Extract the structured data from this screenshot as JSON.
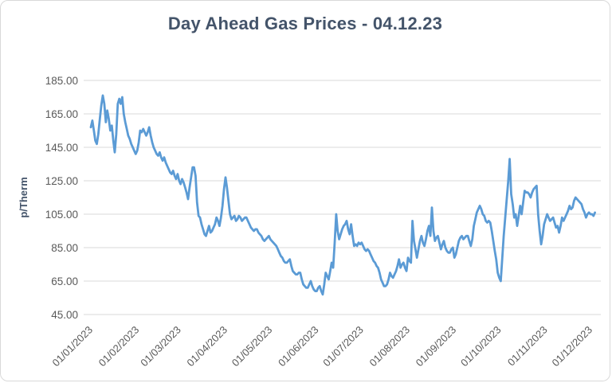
{
  "card": {
    "title": "Day Ahead Gas Prices - 04.12.23"
  },
  "style": {
    "title_color": "#44546A",
    "axis_text_color": "#595959",
    "gridline_color": "#D9D9D9",
    "line_color": "#5B9BD5",
    "background": "#FFFFFF"
  },
  "chart_data": {
    "type": "line",
    "title": "Day Ahead Gas Prices - 04.12.23",
    "xlabel": "",
    "ylabel": "p/Therm",
    "ylim": [
      45,
      185
    ],
    "y_ticks": [
      45,
      65,
      85,
      105,
      125,
      145,
      165,
      185
    ],
    "y_tick_format": "two-decimal",
    "x_tick_labels": [
      "01/01/2023",
      "01/02/2023",
      "01/03/2023",
      "01/04/2023",
      "01/05/2023",
      "01/06/2023",
      "01/07/2023",
      "01/08/2023",
      "01/09/2023",
      "01/10/2023",
      "01/11/2023",
      "01/12/2023"
    ],
    "grid": "horizontal-only",
    "legend": "none",
    "points_format": [
      "date MM/DD in 2023",
      "price p/Therm"
    ],
    "points": [
      [
        "01/01",
        157
      ],
      [
        "01/02",
        161
      ],
      [
        "01/03",
        155
      ],
      [
        "01/04",
        149
      ],
      [
        "01/05",
        147
      ],
      [
        "01/06",
        153
      ],
      [
        "01/07",
        162
      ],
      [
        "01/08",
        170
      ],
      [
        "01/09",
        176
      ],
      [
        "01/10",
        171
      ],
      [
        "01/11",
        160
      ],
      [
        "01/12",
        167
      ],
      [
        "01/13",
        162
      ],
      [
        "01/14",
        155
      ],
      [
        "01/15",
        158
      ],
      [
        "01/16",
        149
      ],
      [
        "01/17",
        142
      ],
      [
        "01/18",
        153
      ],
      [
        "01/19",
        171
      ],
      [
        "01/20",
        174
      ],
      [
        "01/21",
        171
      ],
      [
        "01/22",
        175
      ],
      [
        "01/23",
        165
      ],
      [
        "01/24",
        160
      ],
      [
        "01/25",
        156
      ],
      [
        "01/26",
        152
      ],
      [
        "01/27",
        150
      ],
      [
        "01/28",
        147
      ],
      [
        "01/29",
        145
      ],
      [
        "01/30",
        143
      ],
      [
        "01/31",
        141
      ],
      [
        "02/01",
        143
      ],
      [
        "02/02",
        148
      ],
      [
        "02/03",
        155
      ],
      [
        "02/04",
        154
      ],
      [
        "02/05",
        156
      ],
      [
        "02/06",
        154
      ],
      [
        "02/07",
        152
      ],
      [
        "02/08",
        154
      ],
      [
        "02/09",
        157
      ],
      [
        "02/10",
        152
      ],
      [
        "02/11",
        148
      ],
      [
        "02/12",
        145
      ],
      [
        "02/13",
        143
      ],
      [
        "02/14",
        141
      ],
      [
        "02/15",
        140
      ],
      [
        "02/16",
        142
      ],
      [
        "02/17",
        139
      ],
      [
        "02/18",
        137
      ],
      [
        "02/19",
        139
      ],
      [
        "02/20",
        136
      ],
      [
        "02/21",
        134
      ],
      [
        "02/22",
        132
      ],
      [
        "02/23",
        130
      ],
      [
        "02/24",
        129
      ],
      [
        "02/25",
        131
      ],
      [
        "02/26",
        128
      ],
      [
        "02/27",
        126
      ],
      [
        "02/28",
        129
      ],
      [
        "03/01",
        125
      ],
      [
        "03/02",
        123
      ],
      [
        "03/03",
        126
      ],
      [
        "03/04",
        124
      ],
      [
        "03/05",
        121
      ],
      [
        "03/06",
        118
      ],
      [
        "03/07",
        114
      ],
      [
        "03/08",
        121
      ],
      [
        "03/09",
        127
      ],
      [
        "03/10",
        133
      ],
      [
        "03/11",
        133
      ],
      [
        "03/12",
        128
      ],
      [
        "03/13",
        112
      ],
      [
        "03/14",
        104
      ],
      [
        "03/15",
        103
      ],
      [
        "03/16",
        99
      ],
      [
        "03/17",
        96
      ],
      [
        "03/18",
        93
      ],
      [
        "03/19",
        92
      ],
      [
        "03/20",
        95
      ],
      [
        "03/21",
        98
      ],
      [
        "03/22",
        94
      ],
      [
        "03/23",
        95
      ],
      [
        "03/24",
        97
      ],
      [
        "03/25",
        99
      ],
      [
        "03/26",
        103
      ],
      [
        "03/27",
        101
      ],
      [
        "03/28",
        98
      ],
      [
        "03/29",
        103
      ],
      [
        "03/30",
        110
      ],
      [
        "03/31",
        120
      ],
      [
        "04/01",
        127
      ],
      [
        "04/02",
        121
      ],
      [
        "04/03",
        113
      ],
      [
        "04/04",
        105
      ],
      [
        "04/05",
        102
      ],
      [
        "04/06",
        103
      ],
      [
        "04/07",
        104
      ],
      [
        "04/08",
        101
      ],
      [
        "04/09",
        102
      ],
      [
        "04/10",
        104
      ],
      [
        "04/11",
        103
      ],
      [
        "04/12",
        101
      ],
      [
        "04/13",
        102
      ],
      [
        "04/14",
        103
      ],
      [
        "04/15",
        103
      ],
      [
        "04/16",
        101
      ],
      [
        "04/17",
        99
      ],
      [
        "04/18",
        97
      ],
      [
        "04/19",
        96
      ],
      [
        "04/20",
        95
      ],
      [
        "04/21",
        96
      ],
      [
        "04/22",
        96
      ],
      [
        "04/23",
        94
      ],
      [
        "04/24",
        93
      ],
      [
        "04/25",
        92
      ],
      [
        "04/26",
        90
      ],
      [
        "04/27",
        89
      ],
      [
        "04/28",
        90
      ],
      [
        "04/29",
        91
      ],
      [
        "04/30",
        92
      ],
      [
        "05/01",
        90
      ],
      [
        "05/02",
        89
      ],
      [
        "05/03",
        88
      ],
      [
        "05/04",
        87
      ],
      [
        "05/05",
        86
      ],
      [
        "05/06",
        84
      ],
      [
        "05/07",
        82
      ],
      [
        "05/08",
        80
      ],
      [
        "05/09",
        79
      ],
      [
        "05/10",
        77
      ],
      [
        "05/11",
        76
      ],
      [
        "05/12",
        76
      ],
      [
        "05/13",
        77
      ],
      [
        "05/14",
        78
      ],
      [
        "05/15",
        74
      ],
      [
        "05/16",
        71
      ],
      [
        "05/17",
        70
      ],
      [
        "05/18",
        69
      ],
      [
        "05/19",
        69
      ],
      [
        "05/20",
        70
      ],
      [
        "05/21",
        70
      ],
      [
        "05/22",
        66
      ],
      [
        "05/23",
        63
      ],
      [
        "05/24",
        62
      ],
      [
        "05/25",
        61
      ],
      [
        "05/26",
        61
      ],
      [
        "05/27",
        63
      ],
      [
        "05/28",
        65
      ],
      [
        "05/29",
        62
      ],
      [
        "05/30",
        60
      ],
      [
        "05/31",
        59
      ],
      [
        "06/01",
        59
      ],
      [
        "06/02",
        61
      ],
      [
        "06/03",
        62
      ],
      [
        "06/04",
        59
      ],
      [
        "06/05",
        57
      ],
      [
        "06/06",
        63
      ],
      [
        "06/07",
        70
      ],
      [
        "06/08",
        68
      ],
      [
        "06/09",
        66
      ],
      [
        "06/10",
        71
      ],
      [
        "06/11",
        76
      ],
      [
        "06/12",
        73
      ],
      [
        "06/13",
        88
      ],
      [
        "06/14",
        105
      ],
      [
        "06/15",
        95
      ],
      [
        "06/16",
        90
      ],
      [
        "06/17",
        93
      ],
      [
        "06/18",
        96
      ],
      [
        "06/19",
        98
      ],
      [
        "06/20",
        99
      ],
      [
        "06/21",
        101
      ],
      [
        "06/22",
        96
      ],
      [
        "06/23",
        93
      ],
      [
        "06/24",
        99
      ],
      [
        "06/25",
        92
      ],
      [
        "06/26",
        86
      ],
      [
        "06/27",
        87
      ],
      [
        "06/28",
        86
      ],
      [
        "06/29",
        88
      ],
      [
        "06/30",
        87
      ],
      [
        "07/01",
        88
      ],
      [
        "07/02",
        86
      ],
      [
        "07/03",
        84
      ],
      [
        "07/04",
        83
      ],
      [
        "07/05",
        84
      ],
      [
        "07/06",
        83
      ],
      [
        "07/07",
        81
      ],
      [
        "07/08",
        79
      ],
      [
        "07/09",
        77
      ],
      [
        "07/10",
        76
      ],
      [
        "07/11",
        74
      ],
      [
        "07/12",
        73
      ],
      [
        "07/13",
        70
      ],
      [
        "07/14",
        66
      ],
      [
        "07/15",
        64
      ],
      [
        "07/16",
        62
      ],
      [
        "07/17",
        62
      ],
      [
        "07/18",
        63
      ],
      [
        "07/19",
        66
      ],
      [
        "07/20",
        70
      ],
      [
        "07/21",
        68
      ],
      [
        "07/22",
        67
      ],
      [
        "07/23",
        69
      ],
      [
        "07/24",
        71
      ],
      [
        "07/25",
        74
      ],
      [
        "07/26",
        78
      ],
      [
        "07/27",
        73
      ],
      [
        "07/28",
        75
      ],
      [
        "07/29",
        76
      ],
      [
        "07/30",
        73
      ],
      [
        "07/31",
        71
      ],
      [
        "08/01",
        79
      ],
      [
        "08/02",
        77
      ],
      [
        "08/03",
        76
      ],
      [
        "08/04",
        101
      ],
      [
        "08/05",
        89
      ],
      [
        "08/06",
        84
      ],
      [
        "08/07",
        79
      ],
      [
        "08/08",
        84
      ],
      [
        "08/09",
        89
      ],
      [
        "08/10",
        92
      ],
      [
        "08/11",
        88
      ],
      [
        "08/12",
        86
      ],
      [
        "08/13",
        90
      ],
      [
        "08/14",
        95
      ],
      [
        "08/15",
        98
      ],
      [
        "08/16",
        92
      ],
      [
        "08/17",
        109
      ],
      [
        "08/18",
        95
      ],
      [
        "08/19",
        89
      ],
      [
        "08/20",
        91
      ],
      [
        "08/21",
        92
      ],
      [
        "08/22",
        88
      ],
      [
        "08/23",
        84
      ],
      [
        "08/24",
        87
      ],
      [
        "08/25",
        89
      ],
      [
        "08/26",
        85
      ],
      [
        "08/27",
        83
      ],
      [
        "08/28",
        82
      ],
      [
        "08/29",
        82
      ],
      [
        "08/30",
        84
      ],
      [
        "08/31",
        85
      ],
      [
        "09/01",
        79
      ],
      [
        "09/02",
        81
      ],
      [
        "09/03",
        85
      ],
      [
        "09/04",
        89
      ],
      [
        "09/05",
        91
      ],
      [
        "09/06",
        92
      ],
      [
        "09/07",
        90
      ],
      [
        "09/08",
        91
      ],
      [
        "09/09",
        92
      ],
      [
        "09/10",
        92
      ],
      [
        "09/11",
        89
      ],
      [
        "09/12",
        86
      ],
      [
        "09/13",
        90
      ],
      [
        "09/14",
        98
      ],
      [
        "09/15",
        102
      ],
      [
        "09/16",
        106
      ],
      [
        "09/17",
        108
      ],
      [
        "09/18",
        110
      ],
      [
        "09/19",
        108
      ],
      [
        "09/20",
        105
      ],
      [
        "09/21",
        104
      ],
      [
        "09/22",
        101
      ],
      [
        "09/23",
        100
      ],
      [
        "09/24",
        101
      ],
      [
        "09/25",
        100
      ],
      [
        "09/26",
        95
      ],
      [
        "09/27",
        89
      ],
      [
        "09/28",
        83
      ],
      [
        "09/29",
        78
      ],
      [
        "09/30",
        70
      ],
      [
        "10/01",
        67
      ],
      [
        "10/02",
        65
      ],
      [
        "10/03",
        78
      ],
      [
        "10/04",
        92
      ],
      [
        "10/05",
        103
      ],
      [
        "10/06",
        114
      ],
      [
        "10/07",
        125
      ],
      [
        "10/08",
        138
      ],
      [
        "10/09",
        117
      ],
      [
        "10/10",
        111
      ],
      [
        "10/11",
        103
      ],
      [
        "10/12",
        105
      ],
      [
        "10/13",
        98
      ],
      [
        "10/14",
        104
      ],
      [
        "10/15",
        110
      ],
      [
        "10/16",
        105
      ],
      [
        "10/17",
        112
      ],
      [
        "10/18",
        119
      ],
      [
        "10/19",
        118
      ],
      [
        "10/20",
        118
      ],
      [
        "10/21",
        117
      ],
      [
        "10/22",
        115
      ],
      [
        "10/23",
        118
      ],
      [
        "10/24",
        120
      ],
      [
        "10/25",
        121
      ],
      [
        "10/26",
        122
      ],
      [
        "10/27",
        105
      ],
      [
        "10/28",
        95
      ],
      [
        "10/29",
        87
      ],
      [
        "10/30",
        92
      ],
      [
        "10/31",
        99
      ],
      [
        "11/01",
        102
      ],
      [
        "11/02",
        105
      ],
      [
        "11/03",
        103
      ],
      [
        "11/04",
        101
      ],
      [
        "11/05",
        102
      ],
      [
        "11/06",
        103
      ],
      [
        "11/07",
        100
      ],
      [
        "11/08",
        97
      ],
      [
        "11/09",
        98
      ],
      [
        "11/10",
        94
      ],
      [
        "11/11",
        98
      ],
      [
        "11/12",
        103
      ],
      [
        "11/13",
        101
      ],
      [
        "11/14",
        103
      ],
      [
        "11/15",
        105
      ],
      [
        "11/16",
        107
      ],
      [
        "11/17",
        110
      ],
      [
        "11/18",
        108
      ],
      [
        "11/19",
        109
      ],
      [
        "11/20",
        113
      ],
      [
        "11/21",
        115
      ],
      [
        "11/22",
        114
      ],
      [
        "11/23",
        113
      ],
      [
        "11/24",
        112
      ],
      [
        "11/25",
        111
      ],
      [
        "11/26",
        108
      ],
      [
        "11/27",
        106
      ],
      [
        "11/28",
        103
      ],
      [
        "11/29",
        105
      ],
      [
        "11/30",
        106
      ],
      [
        "12/01",
        105
      ],
      [
        "12/02",
        105
      ],
      [
        "12/03",
        104
      ],
      [
        "12/04",
        106
      ]
    ]
  }
}
